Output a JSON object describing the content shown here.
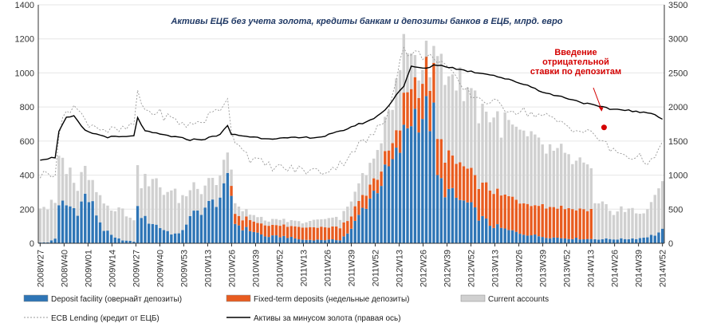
{
  "chart_data": {
    "type": "bar",
    "title": "Активы ЕЦБ без учета золота, кредиты банкам и депозиты банков в ЕЦБ, млрд. евро",
    "xlabel": "",
    "ylabel": "",
    "y_left": {
      "min": 0,
      "max": 1400,
      "ticks": [
        "0",
        "200",
        "400",
        "600",
        "800",
        "1000",
        "1200",
        "1400"
      ]
    },
    "y_right": {
      "min": 0,
      "max": 3500,
      "ticks": [
        "0",
        "500",
        "1000",
        "1500",
        "2000",
        "2500",
        "3000",
        "3500"
      ]
    },
    "x_tick_labels": [
      "2008W27",
      "2008W40",
      "2009W01",
      "2009W14",
      "2009W27",
      "2009W40",
      "2009W53",
      "2010W13",
      "2010W26",
      "2010W39",
      "2010W52",
      "2011W13",
      "2011W26",
      "2011W39",
      "2011W52",
      "2012W13",
      "2012W26",
      "2012W39",
      "2012W52",
      "2013W13",
      "2013W26",
      "2013W39",
      "2013W52",
      "2014W13",
      "2014W26",
      "2014W39",
      "2014W52"
    ],
    "stacked": true,
    "series": [
      {
        "name": "Deposit facility (овернайт депозиты)",
        "color": "#2e75b6",
        "axis": "left",
        "kind": "bar",
        "anchors": [
          [
            0,
            5
          ],
          [
            2,
            5
          ],
          [
            4,
            30
          ],
          [
            5,
            200
          ],
          [
            6,
            230
          ],
          [
            8,
            215
          ],
          [
            10,
            195
          ],
          [
            12,
            280
          ],
          [
            14,
            220
          ],
          [
            17,
            80
          ],
          [
            20,
            30
          ],
          [
            23,
            15
          ],
          [
            25,
            10
          ],
          [
            26,
            200
          ],
          [
            28,
            140
          ],
          [
            30,
            120
          ],
          [
            33,
            80
          ],
          [
            35,
            60
          ],
          [
            37,
            50
          ],
          [
            39,
            120
          ],
          [
            41,
            170
          ],
          [
            44,
            210
          ],
          [
            47,
            250
          ],
          [
            49,
            300
          ],
          [
            50,
            360
          ],
          [
            51,
            280
          ],
          [
            52,
            120
          ],
          [
            54,
            90
          ],
          [
            57,
            70
          ],
          [
            60,
            40
          ],
          [
            65,
            40
          ],
          [
            70,
            20
          ],
          [
            75,
            20
          ],
          [
            80,
            20
          ],
          [
            83,
            80
          ],
          [
            86,
            200
          ],
          [
            89,
            300
          ],
          [
            92,
            400
          ],
          [
            95,
            500
          ],
          [
            97,
            620
          ],
          [
            99,
            750
          ],
          [
            101,
            780
          ],
          [
            103,
            760
          ],
          [
            105,
            720
          ],
          [
            106,
            380
          ],
          [
            108,
            320
          ],
          [
            111,
            260
          ],
          [
            114,
            230
          ],
          [
            117,
            160
          ],
          [
            120,
            110
          ],
          [
            124,
            80
          ],
          [
            128,
            60
          ],
          [
            132,
            45
          ],
          [
            136,
            35
          ],
          [
            140,
            30
          ],
          [
            143,
            28
          ],
          [
            146,
            25
          ],
          [
            149,
            25
          ],
          [
            150,
            25
          ],
          [
            155,
            25
          ],
          [
            160,
            30
          ],
          [
            164,
            50
          ],
          [
            166,
            75
          ]
        ]
      },
      {
        "name": "Fixed-term deposits (недельные депозиты)",
        "color": "#e85c20",
        "axis": "left",
        "kind": "bar",
        "anchors": [
          [
            0,
            0
          ],
          [
            50,
            0
          ],
          [
            51,
            60
          ],
          [
            52,
            60
          ],
          [
            60,
            60
          ],
          [
            70,
            70
          ],
          [
            80,
            75
          ],
          [
            83,
            80
          ],
          [
            86,
            75
          ],
          [
            90,
            75
          ],
          [
            95,
            100
          ],
          [
            97,
            190
          ],
          [
            99,
            200
          ],
          [
            101,
            210
          ],
          [
            103,
            215
          ],
          [
            105,
            215
          ],
          [
            106,
            210
          ],
          [
            110,
            210
          ],
          [
            115,
            205
          ],
          [
            120,
            200
          ],
          [
            125,
            195
          ],
          [
            130,
            190
          ],
          [
            135,
            185
          ],
          [
            140,
            180
          ],
          [
            145,
            175
          ],
          [
            147,
            170
          ],
          [
            148,
            0
          ],
          [
            166,
            0
          ]
        ]
      },
      {
        "name": "Current accounts",
        "color": "#d0d0d0",
        "axis": "left",
        "kind": "bar",
        "anchors": [
          [
            0,
            220
          ],
          [
            4,
            200
          ],
          [
            5,
            250
          ],
          [
            8,
            200
          ],
          [
            10,
            160
          ],
          [
            14,
            150
          ],
          [
            20,
            180
          ],
          [
            25,
            150
          ],
          [
            26,
            200
          ],
          [
            30,
            240
          ],
          [
            35,
            240
          ],
          [
            40,
            160
          ],
          [
            45,
            140
          ],
          [
            50,
            130
          ],
          [
            52,
            60
          ],
          [
            55,
            40
          ],
          [
            60,
            30
          ],
          [
            70,
            30
          ],
          [
            80,
            60
          ],
          [
            85,
            100
          ],
          [
            90,
            150
          ],
          [
            95,
            260
          ],
          [
            97,
            330
          ],
          [
            99,
            210
          ],
          [
            101,
            110
          ],
          [
            103,
            80
          ],
          [
            105,
            90
          ],
          [
            106,
            490
          ],
          [
            110,
            480
          ],
          [
            115,
            470
          ],
          [
            120,
            430
          ],
          [
            125,
            410
          ],
          [
            130,
            380
          ],
          [
            135,
            340
          ],
          [
            140,
            300
          ],
          [
            145,
            260
          ],
          [
            148,
            190
          ],
          [
            152,
            180
          ],
          [
            156,
            170
          ],
          [
            160,
            150
          ],
          [
            164,
            200
          ],
          [
            166,
            300
          ]
        ]
      },
      {
        "name": "ECB Lending (кредит от ЕЦБ)",
        "color": "#999999",
        "axis": "left",
        "kind": "line",
        "dash": true,
        "anchors": [
          [
            0,
            400
          ],
          [
            4,
            420
          ],
          [
            5,
            640
          ],
          [
            7,
            780
          ],
          [
            9,
            810
          ],
          [
            12,
            720
          ],
          [
            15,
            690
          ],
          [
            18,
            660
          ],
          [
            22,
            660
          ],
          [
            25,
            700
          ],
          [
            26,
            870
          ],
          [
            28,
            780
          ],
          [
            32,
            760
          ],
          [
            36,
            720
          ],
          [
            40,
            690
          ],
          [
            44,
            730
          ],
          [
            48,
            790
          ],
          [
            50,
            870
          ],
          [
            51,
            640
          ],
          [
            53,
            590
          ],
          [
            56,
            500
          ],
          [
            60,
            460
          ],
          [
            65,
            440
          ],
          [
            70,
            430
          ],
          [
            75,
            420
          ],
          [
            80,
            460
          ],
          [
            84,
            560
          ],
          [
            88,
            620
          ],
          [
            92,
            720
          ],
          [
            95,
            980
          ],
          [
            97,
            1150
          ],
          [
            99,
            1100
          ],
          [
            101,
            1120
          ],
          [
            103,
            1080
          ],
          [
            105,
            1100
          ],
          [
            108,
            1050
          ],
          [
            112,
            920
          ],
          [
            116,
            860
          ],
          [
            120,
            830
          ],
          [
            125,
            790
          ],
          [
            130,
            770
          ],
          [
            135,
            740
          ],
          [
            140,
            700
          ],
          [
            145,
            650
          ],
          [
            148,
            640
          ],
          [
            152,
            550
          ],
          [
            156,
            520
          ],
          [
            160,
            500
          ],
          [
            164,
            480
          ],
          [
            166,
            580
          ]
        ]
      },
      {
        "name": "Активы за минусом золота (правая ось)",
        "color": "#000000",
        "axis": "right",
        "kind": "line",
        "dash": false,
        "anchors": [
          [
            0,
            1230
          ],
          [
            4,
            1260
          ],
          [
            5,
            1650
          ],
          [
            7,
            1840
          ],
          [
            9,
            1860
          ],
          [
            12,
            1650
          ],
          [
            15,
            1600
          ],
          [
            18,
            1560
          ],
          [
            22,
            1560
          ],
          [
            25,
            1570
          ],
          [
            26,
            1850
          ],
          [
            28,
            1640
          ],
          [
            32,
            1600
          ],
          [
            36,
            1560
          ],
          [
            40,
            1520
          ],
          [
            44,
            1530
          ],
          [
            48,
            1600
          ],
          [
            50,
            1720
          ],
          [
            51,
            1600
          ],
          [
            55,
            1570
          ],
          [
            60,
            1540
          ],
          [
            65,
            1540
          ],
          [
            70,
            1550
          ],
          [
            75,
            1560
          ],
          [
            80,
            1640
          ],
          [
            84,
            1730
          ],
          [
            88,
            1800
          ],
          [
            92,
            1950
          ],
          [
            95,
            2180
          ],
          [
            97,
            2310
          ],
          [
            99,
            2590
          ],
          [
            101,
            2580
          ],
          [
            103,
            2560
          ],
          [
            105,
            2620
          ],
          [
            108,
            2600
          ],
          [
            112,
            2550
          ],
          [
            116,
            2510
          ],
          [
            120,
            2480
          ],
          [
            125,
            2400
          ],
          [
            130,
            2320
          ],
          [
            135,
            2200
          ],
          [
            140,
            2140
          ],
          [
            145,
            2060
          ],
          [
            148,
            2020
          ],
          [
            152,
            1970
          ],
          [
            156,
            1960
          ],
          [
            160,
            1920
          ],
          [
            164,
            1900
          ],
          [
            166,
            1820
          ]
        ]
      }
    ],
    "grid": true,
    "legend_position": "bottom",
    "annotations": [
      {
        "text_lines": [
          "Введение",
          "отрицательной",
          "ставки по депозитам"
        ],
        "x_index": 150,
        "y": 680
      }
    ]
  },
  "legend": {
    "items": [
      "Deposit facility (овернайт депозиты)",
      "Fixed-term deposits (недельные депозиты)",
      "Current accounts",
      "ECB  Lending (кредит от ЕЦБ)",
      "Активы за минусом золота (правая ось)"
    ]
  },
  "colors": {
    "deposit_facility": "#2e75b6",
    "fixed_term": "#e85c20",
    "current_accounts": "#d0d0d0",
    "lending": "#999999",
    "assets": "#000000",
    "title": "#1f3864",
    "annotation": "#d40000"
  }
}
